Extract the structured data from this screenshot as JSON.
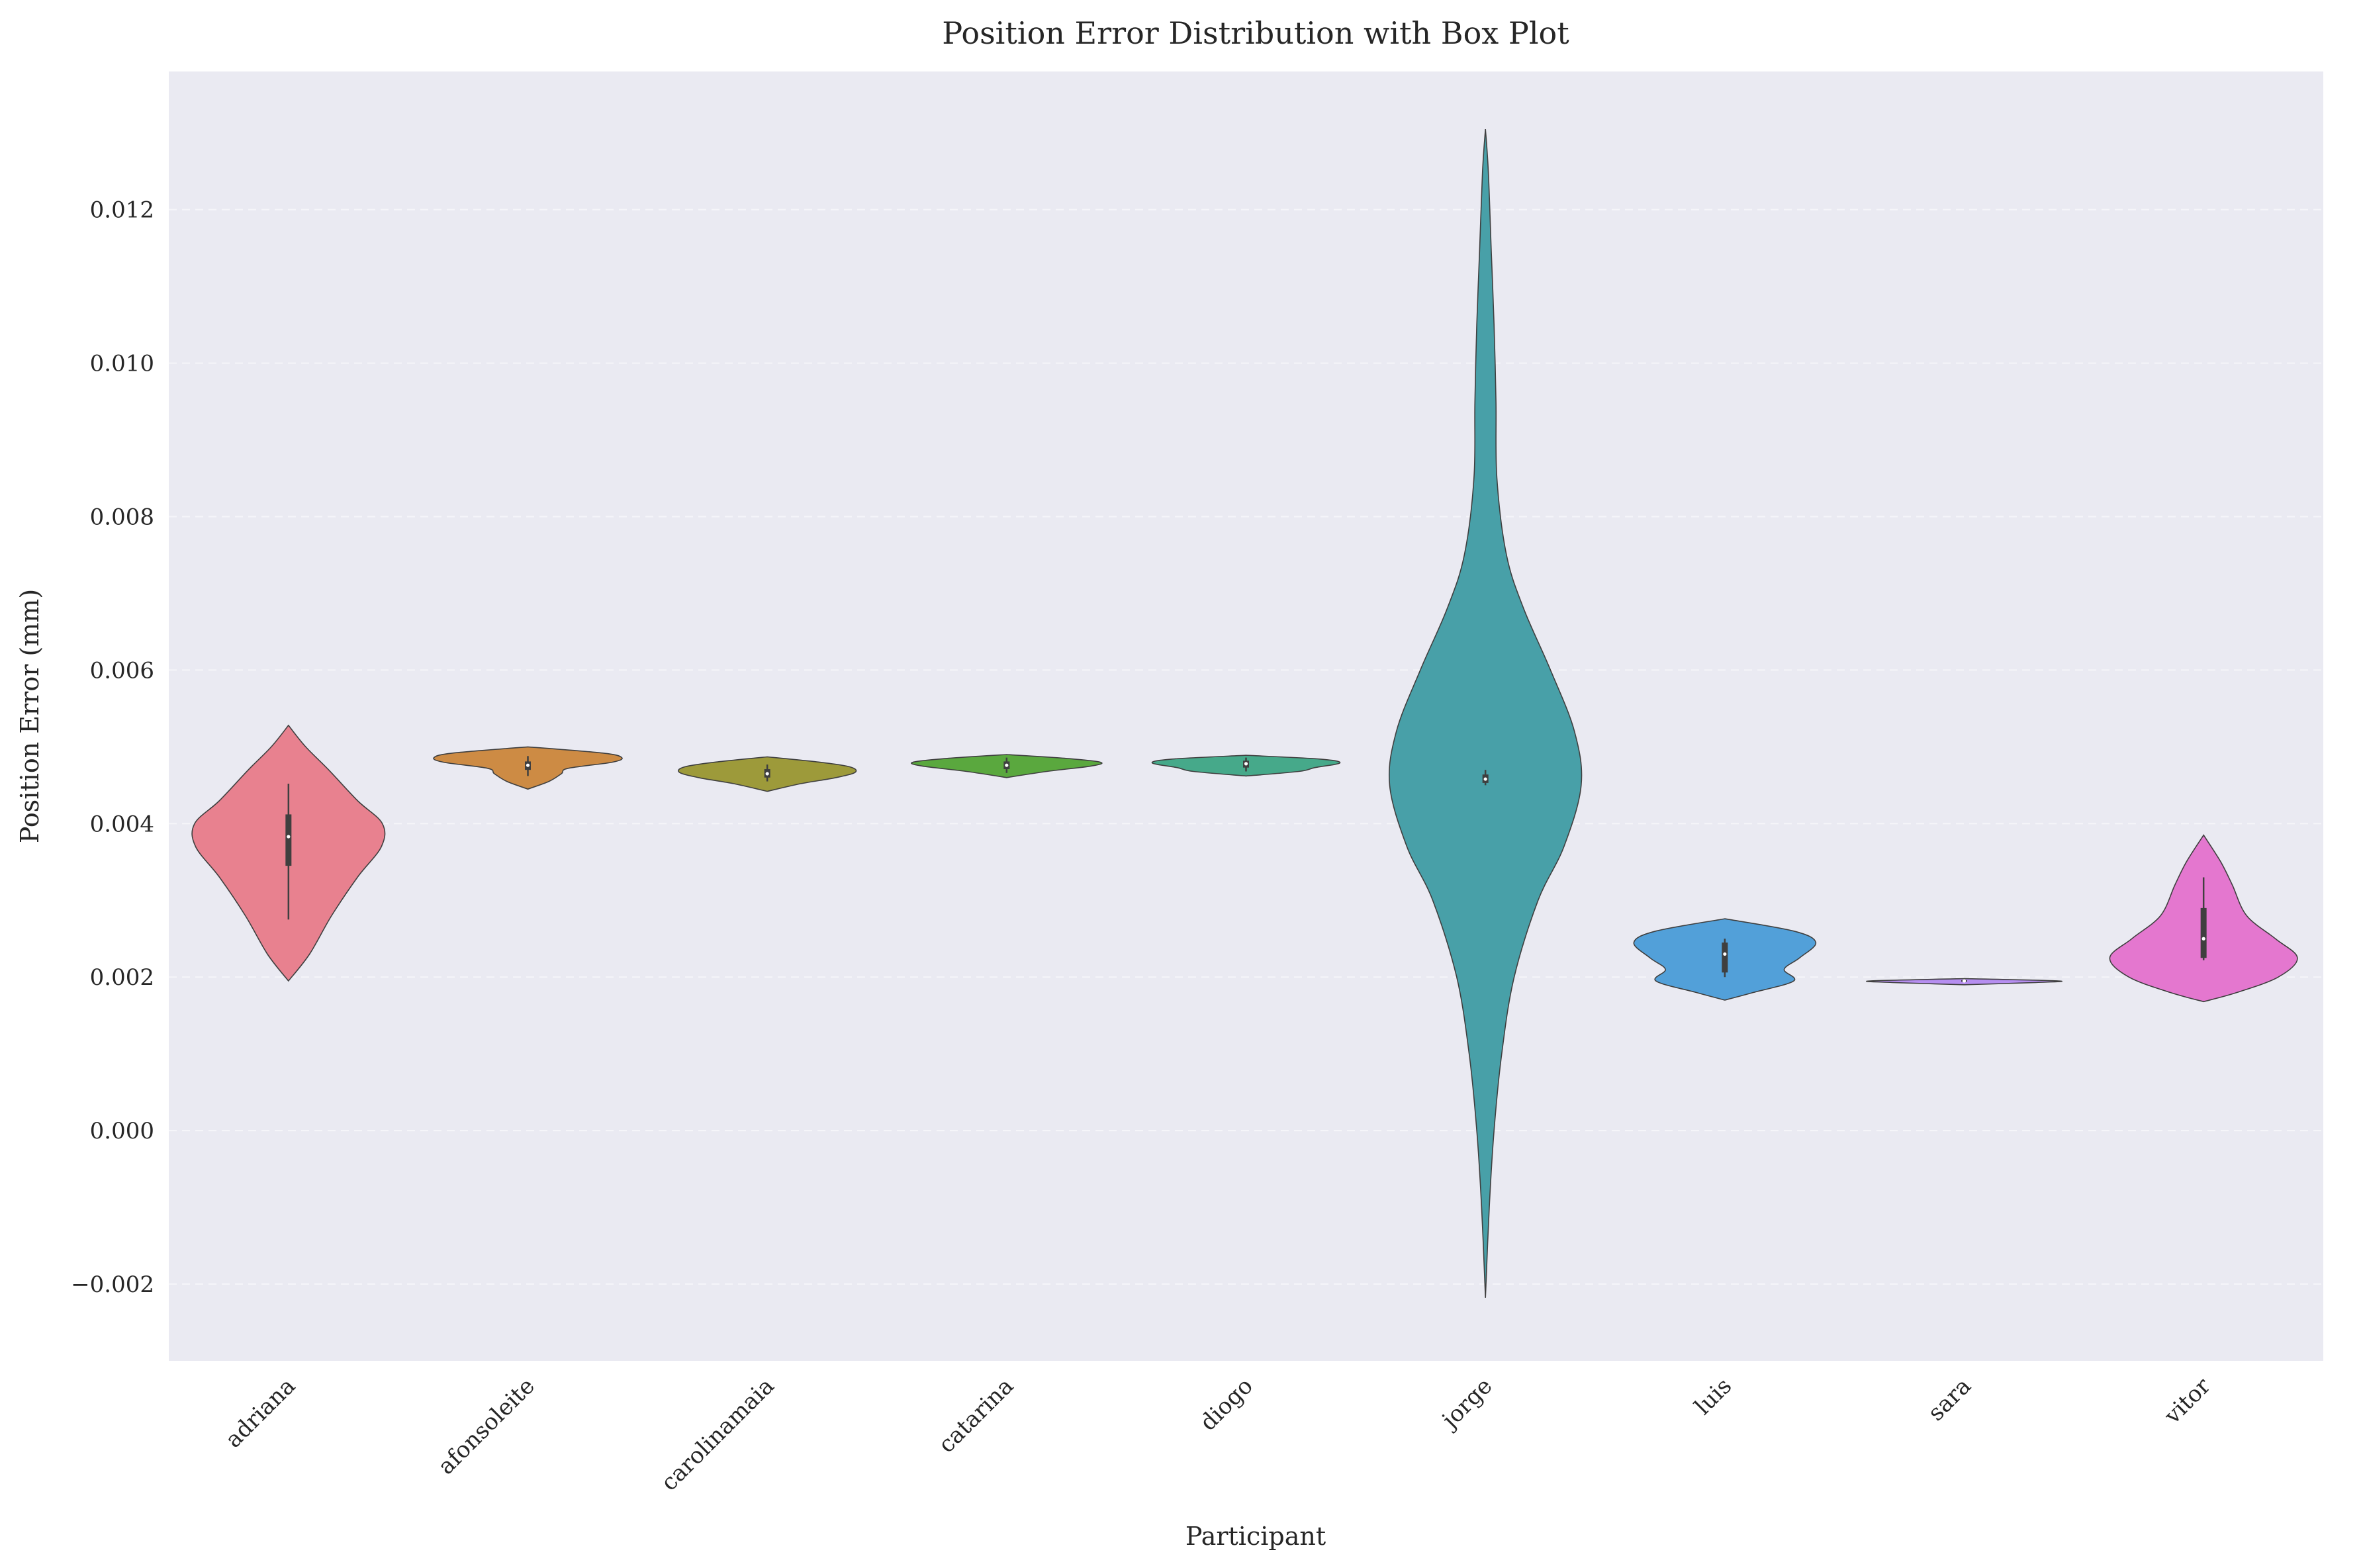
{
  "chart_data": {
    "type": "violin",
    "title": "Position Error Distribution with Box Plot",
    "xlabel": "Participant",
    "ylabel": "Position Error (mm)",
    "ylim": [
      -0.003,
      0.0138
    ],
    "yticks": [
      -0.002,
      0.0,
      0.002,
      0.004,
      0.006,
      0.008,
      0.01,
      0.012
    ],
    "ytick_labels": [
      "−0.002",
      "0.000",
      "0.002",
      "0.004",
      "0.006",
      "0.008",
      "0.010",
      "0.012"
    ],
    "grid": true,
    "categories": [
      "adriana",
      "afonsoleite",
      "carolinamaia",
      "catarina",
      "diogo",
      "jorge",
      "luis",
      "sara",
      "vitor"
    ],
    "series": [
      {
        "category": "adriana",
        "color": "#e8818f",
        "violin": {
          "min": 0.00195,
          "max": 0.00528,
          "profile": [
            [
              0.00195,
              0.0
            ],
            [
              0.0023,
              0.22
            ],
            [
              0.0028,
              0.45
            ],
            [
              0.0033,
              0.72
            ],
            [
              0.0037,
              0.97
            ],
            [
              0.004,
              0.98
            ],
            [
              0.0043,
              0.72
            ],
            [
              0.0047,
              0.42
            ],
            [
              0.005,
              0.18
            ],
            [
              0.00528,
              0.0
            ]
          ]
        },
        "box": {
          "whisker_low": 0.00275,
          "q1": 0.00345,
          "median": 0.00383,
          "q3": 0.00412,
          "whisker_high": 0.00452
        }
      },
      {
        "category": "afonsoleite",
        "color": "#cd8b44",
        "violin": {
          "min": 0.00445,
          "max": 0.005,
          "profile": [
            [
              0.00445,
              0.0
            ],
            [
              0.00455,
              0.22
            ],
            [
              0.00465,
              0.35
            ],
            [
              0.00472,
              0.42
            ],
            [
              0.0048,
              0.88
            ],
            [
              0.00486,
              0.98
            ],
            [
              0.00492,
              0.78
            ],
            [
              0.005,
              0.0
            ]
          ]
        },
        "box": {
          "whisker_low": 0.00462,
          "q1": 0.0047,
          "median": 0.00476,
          "q3": 0.00481,
          "whisker_high": 0.00488
        }
      },
      {
        "category": "carolinamaia",
        "color": "#9d9a3a",
        "violin": {
          "min": 0.00442,
          "max": 0.00487,
          "profile": [
            [
              0.00442,
              0.0
            ],
            [
              0.00452,
              0.35
            ],
            [
              0.0046,
              0.72
            ],
            [
              0.00467,
              0.92
            ],
            [
              0.00474,
              0.86
            ],
            [
              0.0048,
              0.55
            ],
            [
              0.00487,
              0.0
            ]
          ]
        },
        "box": {
          "whisker_low": 0.00455,
          "q1": 0.0046,
          "median": 0.00465,
          "q3": 0.00471,
          "whisker_high": 0.00477
        }
      },
      {
        "category": "catarina",
        "color": "#5aa83e",
        "violin": {
          "min": 0.0046,
          "max": 0.0049,
          "profile": [
            [
              0.0046,
              0.0
            ],
            [
              0.00468,
              0.42
            ],
            [
              0.00475,
              0.88
            ],
            [
              0.0048,
              0.98
            ],
            [
              0.00485,
              0.62
            ],
            [
              0.0049,
              0.0
            ]
          ]
        },
        "box": {
          "whisker_low": 0.00466,
          "q1": 0.00471,
          "median": 0.00476,
          "q3": 0.00481,
          "whisker_high": 0.00486
        }
      },
      {
        "category": "diogo",
        "color": "#46a98a",
        "violin": {
          "min": 0.00462,
          "max": 0.00489,
          "profile": [
            [
              0.00462,
              0.0
            ],
            [
              0.00468,
              0.55
            ],
            [
              0.00473,
              0.72
            ],
            [
              0.00479,
              0.98
            ],
            [
              0.00484,
              0.78
            ],
            [
              0.00489,
              0.0
            ]
          ]
        },
        "box": {
          "whisker_low": 0.00468,
          "q1": 0.00473,
          "median": 0.00478,
          "q3": 0.00482,
          "whisker_high": 0.00486
        }
      },
      {
        "category": "jorge",
        "color": "#48a0a8",
        "violin": {
          "min": -0.00218,
          "max": 0.01305,
          "profile": [
            [
              -0.00218,
              0.0
            ],
            [
              -0.001,
              0.04
            ],
            [
              0.0,
              0.09
            ],
            [
              0.001,
              0.17
            ],
            [
              0.002,
              0.3
            ],
            [
              0.003,
              0.55
            ],
            [
              0.0037,
              0.82
            ],
            [
              0.0045,
              1.0
            ],
            [
              0.0052,
              0.93
            ],
            [
              0.006,
              0.68
            ],
            [
              0.0068,
              0.4
            ],
            [
              0.0075,
              0.22
            ],
            [
              0.0085,
              0.12
            ],
            [
              0.0095,
              0.11
            ],
            [
              0.0105,
              0.09
            ],
            [
              0.0115,
              0.06
            ],
            [
              0.0125,
              0.03
            ],
            [
              0.01305,
              0.0
            ]
          ]
        },
        "box": {
          "whisker_low": 0.0045,
          "q1": 0.00453,
          "median": 0.00458,
          "q3": 0.00464,
          "whisker_high": 0.0047
        }
      },
      {
        "category": "luis",
        "color": "#52a0d9",
        "violin": {
          "min": 0.0017,
          "max": 0.00276,
          "profile": [
            [
              0.0017,
              0.0
            ],
            [
              0.0018,
              0.3
            ],
            [
              0.00195,
              0.72
            ],
            [
              0.0021,
              0.62
            ],
            [
              0.00225,
              0.78
            ],
            [
              0.00245,
              0.95
            ],
            [
              0.0026,
              0.72
            ],
            [
              0.00276,
              0.0
            ]
          ]
        },
        "box": {
          "whisker_low": 0.002,
          "q1": 0.00206,
          "median": 0.0023,
          "q3": 0.00245,
          "whisker_high": 0.0025
        }
      },
      {
        "category": "sara",
        "color": "#b68ef0",
        "violin": {
          "min": 0.0019,
          "max": 0.00198,
          "profile": [
            [
              0.0019,
              0.0
            ],
            [
              0.00193,
              0.75
            ],
            [
              0.00195,
              0.98
            ],
            [
              0.00198,
              0.0
            ]
          ]
        },
        "box": {
          "whisker_low": 0.00193,
          "q1": 0.00194,
          "median": 0.00195,
          "q3": 0.00196,
          "whisker_high": 0.00197
        }
      },
      {
        "category": "vitor",
        "color": "#e477cf",
        "violin": {
          "min": 0.00168,
          "max": 0.00385,
          "profile": [
            [
              0.00168,
              0.0
            ],
            [
              0.0018,
              0.35
            ],
            [
              0.002,
              0.78
            ],
            [
              0.00225,
              0.98
            ],
            [
              0.0025,
              0.75
            ],
            [
              0.0028,
              0.45
            ],
            [
              0.0032,
              0.3
            ],
            [
              0.0035,
              0.18
            ],
            [
              0.00385,
              0.0
            ]
          ]
        },
        "box": {
          "whisker_low": 0.00222,
          "q1": 0.00225,
          "median": 0.0025,
          "q3": 0.0029,
          "whisker_high": 0.0033
        }
      }
    ]
  }
}
